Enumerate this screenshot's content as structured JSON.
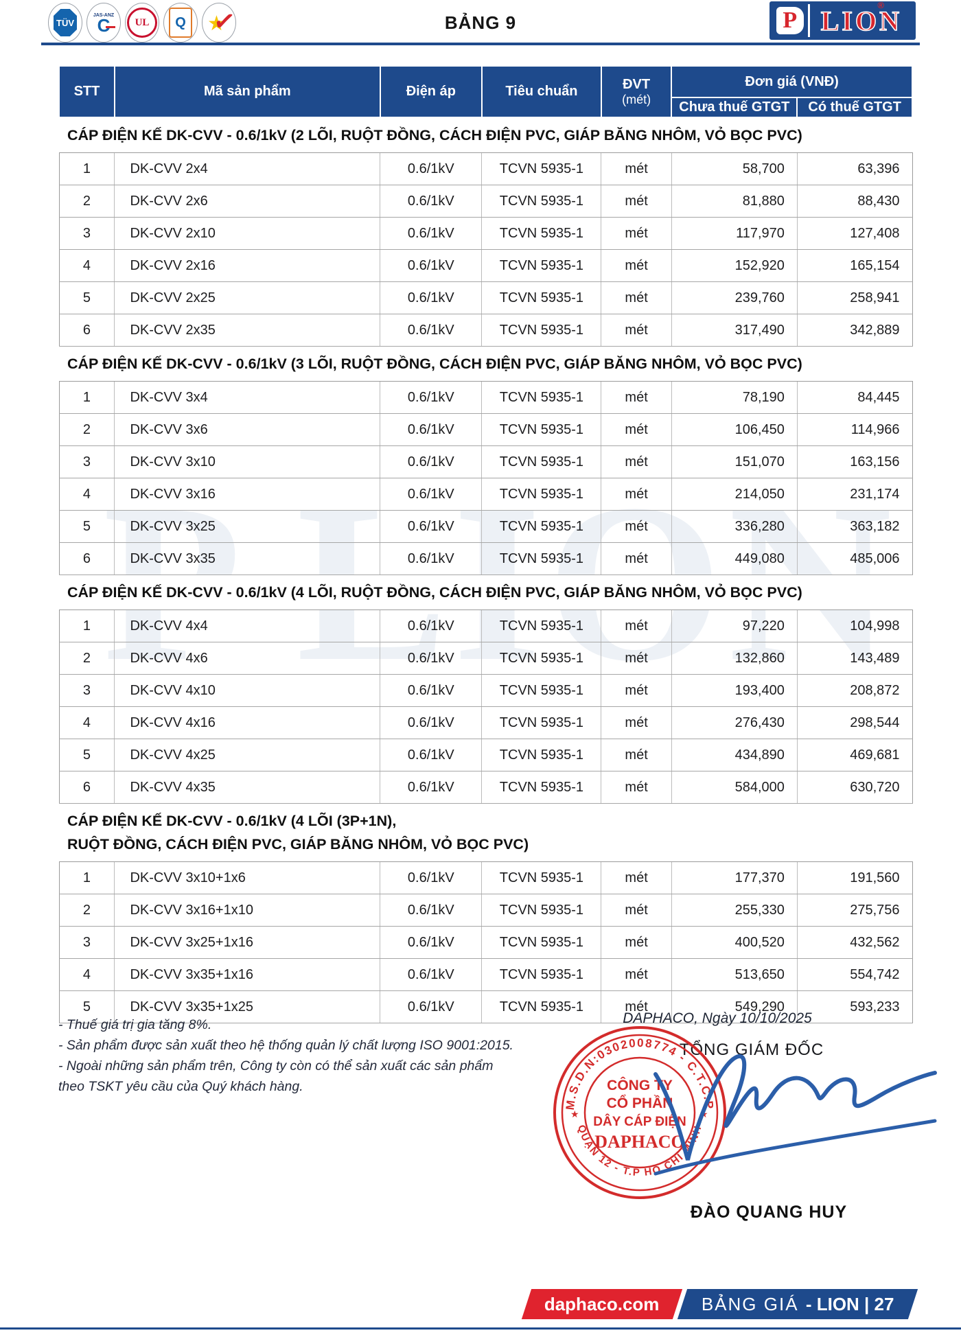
{
  "header": {
    "title": "BẢNG 9",
    "brand": {
      "p": "P",
      "name": "LION",
      "reg": "®"
    },
    "cert_logos": {
      "tuv": "TÜV",
      "jas": "JAS-ANZ",
      "jas_c": "C",
      "ul": "UL",
      "quacert": "Q",
      "hvnclc_star": "★",
      "hvnclc_check": "✓"
    }
  },
  "table": {
    "header": {
      "stt": "STT",
      "code": "Mã sản phẩm",
      "volt": "Điện áp",
      "std": "Tiêu chuẩn",
      "dvt": "ĐVT",
      "dvt_sub": "(mét)",
      "price_group": "Đơn giá (VNĐ)",
      "pre_tax": "Chưa thuế GTGT",
      "with_tax": "Có thuế GTGT"
    },
    "sections": [
      {
        "title_lines": [
          "CÁP ĐIỆN KẾ DK-CVV - 0.6/1kV (2 LÕI, RUỘT ĐỒNG, CÁCH ĐIỆN PVC, GIÁP BĂNG NHÔM, VỎ BỌC PVC)"
        ],
        "rows": [
          [
            "1",
            "DK-CVV 2x4",
            "0.6/1kV",
            "TCVN 5935-1",
            "mét",
            "58,700",
            "63,396"
          ],
          [
            "2",
            "DK-CVV 2x6",
            "0.6/1kV",
            "TCVN 5935-1",
            "mét",
            "81,880",
            "88,430"
          ],
          [
            "3",
            "DK-CVV 2x10",
            "0.6/1kV",
            "TCVN 5935-1",
            "mét",
            "117,970",
            "127,408"
          ],
          [
            "4",
            "DK-CVV 2x16",
            "0.6/1kV",
            "TCVN 5935-1",
            "mét",
            "152,920",
            "165,154"
          ],
          [
            "5",
            "DK-CVV 2x25",
            "0.6/1kV",
            "TCVN 5935-1",
            "mét",
            "239,760",
            "258,941"
          ],
          [
            "6",
            "DK-CVV 2x35",
            "0.6/1kV",
            "TCVN 5935-1",
            "mét",
            "317,490",
            "342,889"
          ]
        ]
      },
      {
        "title_lines": [
          "CÁP ĐIỆN KẾ DK-CVV - 0.6/1kV (3 LÕI, RUỘT ĐỒNG, CÁCH ĐIỆN PVC, GIÁP BĂNG NHÔM, VỎ BỌC PVC)"
        ],
        "rows": [
          [
            "1",
            "DK-CVV 3x4",
            "0.6/1kV",
            "TCVN 5935-1",
            "mét",
            "78,190",
            "84,445"
          ],
          [
            "2",
            "DK-CVV 3x6",
            "0.6/1kV",
            "TCVN 5935-1",
            "mét",
            "106,450",
            "114,966"
          ],
          [
            "3",
            "DK-CVV 3x10",
            "0.6/1kV",
            "TCVN 5935-1",
            "mét",
            "151,070",
            "163,156"
          ],
          [
            "4",
            "DK-CVV 3x16",
            "0.6/1kV",
            "TCVN 5935-1",
            "mét",
            "214,050",
            "231,174"
          ],
          [
            "5",
            "DK-CVV 3x25",
            "0.6/1kV",
            "TCVN 5935-1",
            "mét",
            "336,280",
            "363,182"
          ],
          [
            "6",
            "DK-CVV 3x35",
            "0.6/1kV",
            "TCVN 5935-1",
            "mét",
            "449,080",
            "485,006"
          ]
        ]
      },
      {
        "title_lines": [
          "CÁP ĐIỆN KẾ DK-CVV - 0.6/1kV (4 LÕI, RUỘT ĐỒNG, CÁCH ĐIỆN PVC, GIÁP BĂNG NHÔM, VỎ BỌC PVC)"
        ],
        "rows": [
          [
            "1",
            "DK-CVV 4x4",
            "0.6/1kV",
            "TCVN 5935-1",
            "mét",
            "97,220",
            "104,998"
          ],
          [
            "2",
            "DK-CVV 4x6",
            "0.6/1kV",
            "TCVN 5935-1",
            "mét",
            "132,860",
            "143,489"
          ],
          [
            "3",
            "DK-CVV 4x10",
            "0.6/1kV",
            "TCVN 5935-1",
            "mét",
            "193,400",
            "208,872"
          ],
          [
            "4",
            "DK-CVV 4x16",
            "0.6/1kV",
            "TCVN 5935-1",
            "mét",
            "276,430",
            "298,544"
          ],
          [
            "5",
            "DK-CVV 4x25",
            "0.6/1kV",
            "TCVN 5935-1",
            "mét",
            "434,890",
            "469,681"
          ],
          [
            "6",
            "DK-CVV 4x35",
            "0.6/1kV",
            "TCVN 5935-1",
            "mét",
            "584,000",
            "630,720"
          ]
        ]
      },
      {
        "title_lines": [
          "CÁP ĐIỆN KẾ DK-CVV - 0.6/1kV (4 LÕI (3P+1N),",
          "RUỘT ĐỒNG, CÁCH ĐIỆN PVC, GIÁP BĂNG NHÔM, VỎ BỌC PVC)"
        ],
        "rows": [
          [
            "1",
            "DK-CVV 3x10+1x6",
            "0.6/1kV",
            "TCVN 5935-1",
            "mét",
            "177,370",
            "191,560"
          ],
          [
            "2",
            "DK-CVV 3x16+1x10",
            "0.6/1kV",
            "TCVN 5935-1",
            "mét",
            "255,330",
            "275,756"
          ],
          [
            "3",
            "DK-CVV 3x25+1x16",
            "0.6/1kV",
            "TCVN 5935-1",
            "mét",
            "400,520",
            "432,562"
          ],
          [
            "4",
            "DK-CVV 3x35+1x16",
            "0.6/1kV",
            "TCVN 5935-1",
            "mét",
            "513,650",
            "554,742"
          ],
          [
            "5",
            "DK-CVV 3x35+1x25",
            "0.6/1kV",
            "TCVN 5935-1",
            "mét",
            "549,290",
            "593,233"
          ]
        ]
      }
    ]
  },
  "notes": [
    "- Thuế giá trị gia tăng 8%.",
    "- Sản phẩm được sản xuất theo hệ thống quản lý chất lượng ISO 9001:2015.",
    "- Ngoài những sản phẩm trên, Công ty còn có thể sản xuất các sản phẩm",
    "  theo TSKT yêu cầu của Quý khách hàng."
  ],
  "signature": {
    "place_date": "DAPHACO, Ngày 10/10/2025",
    "title": "TỔNG GIÁM ĐỐC",
    "name": "ĐÀO QUANG HUY",
    "stamp": {
      "arc_top": "M.S.D.N:0302008774 - C.T.C.P",
      "arc_bottom": "QUẬN 12 - T.P HỒ CHÍ MINH",
      "star": "★",
      "center_lines": [
        "CÔNG TY",
        "CỔ PHẦN",
        "DÂY CÁP ĐIỆN",
        "DAPHACO"
      ]
    }
  },
  "bottom_bar": {
    "site": "daphaco.com",
    "label_light": "BẢNG GIÁ",
    "label_bold": "- LION | 27"
  },
  "watermark": "P LION",
  "colors": {
    "navy": "#1e4a8c",
    "red": "#d7262d",
    "bar_red": "#e0232e",
    "stamp_red": "#d32b2b",
    "signature_blue": "#2b5ea9"
  }
}
